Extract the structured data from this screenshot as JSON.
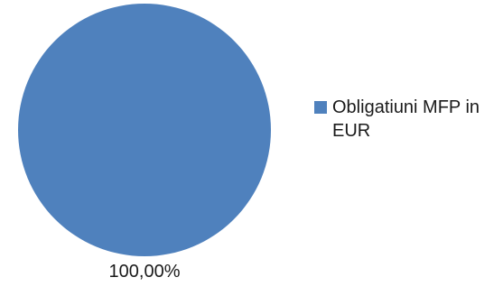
{
  "chart_data": {
    "type": "pie",
    "categories": [
      "Obligatiuni MFP in EUR"
    ],
    "values": [
      100.0
    ],
    "data_labels": [
      "100,00%"
    ],
    "legend_position": "right",
    "colors": [
      "#4f81bd"
    ],
    "title": ""
  }
}
